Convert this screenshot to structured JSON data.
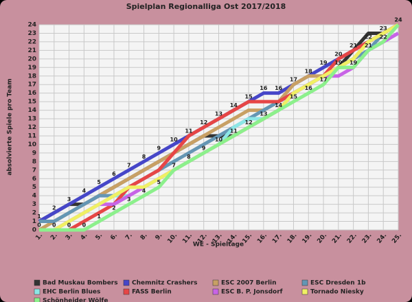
{
  "chart_data": {
    "type": "line",
    "title": "Spielplan Regionalliga Ost 2017/2018",
    "x_label": "WE - Spieltage",
    "y_label": "absolvierte Spiele pro Team",
    "categories": [
      "1.",
      "2.",
      "3.",
      "4.",
      "5.",
      "6.",
      "7.",
      "8.",
      "9.",
      "10.",
      "11.",
      "12.",
      "13.",
      "14.",
      "15.",
      "16.",
      "17.",
      "18.",
      "19.",
      "20.",
      "21.",
      "22.",
      "23.",
      "24.",
      "25."
    ],
    "ylim": [
      0,
      24
    ],
    "yticks": [
      0,
      1,
      2,
      3,
      4,
      5,
      6,
      7,
      8,
      9,
      10,
      11,
      12,
      13,
      14,
      15,
      16,
      17,
      18,
      19,
      20,
      21,
      22,
      23,
      24
    ],
    "grid": true,
    "series": [
      {
        "name": "Bad Muskau Bombers",
        "color": "#333333",
        "values": [
          1,
          2,
          3,
          3,
          4,
          5,
          6,
          7,
          8,
          9,
          10,
          11,
          11,
          11,
          12,
          13,
          14,
          16,
          17,
          18,
          19,
          21,
          23,
          23,
          24
        ]
      },
      {
        "name": "Chemnitz Crashers",
        "color": "#4646c8",
        "values": [
          1,
          2,
          3,
          4,
          5,
          6,
          7,
          8,
          9,
          10,
          11,
          12,
          13,
          14,
          15,
          16,
          16,
          17,
          18,
          19,
          20,
          21,
          22,
          23,
          24
        ]
      },
      {
        "name": "ESC 2007 Berlin",
        "color": "#c8a064",
        "values": [
          0,
          1,
          2,
          3,
          4,
          5,
          6,
          7,
          8,
          9,
          10,
          11,
          12,
          13,
          14,
          14,
          15,
          17,
          18,
          18,
          19,
          20,
          22,
          23,
          24
        ]
      },
      {
        "name": "ESC Dresden 1b",
        "color": "#6496b4",
        "values": [
          1,
          1,
          2,
          3,
          4,
          4,
          5,
          6,
          7,
          8,
          9,
          10,
          11,
          12,
          13,
          14,
          15,
          16,
          17,
          18,
          19,
          20,
          21,
          23,
          24
        ]
      },
      {
        "name": "EHC Berlin Blues",
        "color": "#8ce6e6",
        "values": [
          0,
          0,
          1,
          2,
          3,
          4,
          4,
          5,
          6,
          7,
          8,
          9,
          10,
          12,
          13,
          13,
          14,
          16,
          17,
          18,
          19,
          19,
          21,
          22,
          23
        ]
      },
      {
        "name": "FASS Berlin",
        "color": "#e64646",
        "values": [
          0,
          0,
          0,
          1,
          2,
          3,
          5,
          6,
          7,
          9,
          11,
          12,
          13,
          14,
          15,
          15,
          15,
          16,
          17,
          18,
          20,
          21,
          22,
          23,
          24
        ]
      },
      {
        "name": "ESC B. P. Jonsdorf",
        "color": "#c864e6",
        "values": [
          0,
          0,
          1,
          2,
          3,
          3,
          4,
          5,
          6,
          7,
          8,
          9,
          10,
          11,
          12,
          13,
          14,
          16,
          17,
          18,
          18,
          19,
          21,
          22,
          23
        ]
      },
      {
        "name": "Tornado Niesky",
        "color": "#f0f064",
        "values": [
          0,
          0,
          1,
          2,
          3,
          4,
          5,
          5,
          6,
          7,
          8,
          9,
          10,
          11,
          12,
          13,
          14,
          16,
          17,
          18,
          19,
          20,
          22,
          23,
          24
        ]
      },
      {
        "name": "Schönheider Wölfe",
        "color": "#8cf08c",
        "values": [
          0,
          0,
          0,
          0,
          1,
          2,
          3,
          4,
          5,
          7,
          8,
          9,
          10,
          11,
          12,
          13,
          14,
          15,
          16,
          17,
          19,
          19,
          21,
          22,
          24
        ]
      }
    ]
  }
}
